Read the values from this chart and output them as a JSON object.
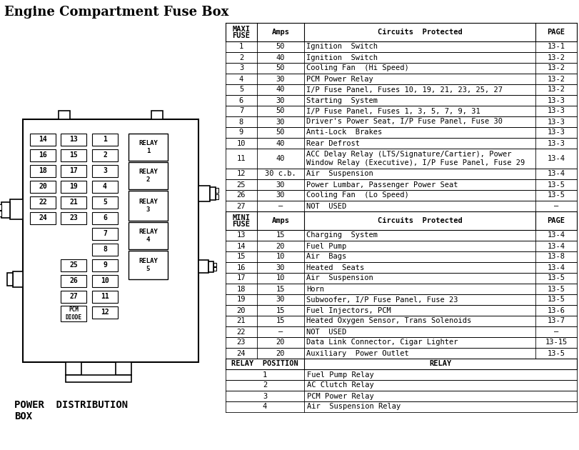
{
  "title": "Engine Compartment Fuse Box",
  "subtitle": "POWER  DISTRIBUTION\nBOX",
  "bg_color": "#ffffff",
  "maxi_fuse_rows": [
    [
      "1",
      "50",
      "Ignition  Switch",
      "13-1"
    ],
    [
      "2",
      "40",
      "Ignition  Switch",
      "13-2"
    ],
    [
      "3",
      "50",
      "Cooling Fan  (Hi Speed)",
      "13-2"
    ],
    [
      "4",
      "30",
      "PCM Power Relay",
      "13-2"
    ],
    [
      "5",
      "40",
      "I/P Fuse Panel, Fuses 10, 19, 21, 23, 25, 27",
      "13-2"
    ],
    [
      "6",
      "30",
      "Starting  System",
      "13-3"
    ],
    [
      "7",
      "50",
      "I/P Fuse Panel, Fuses 1, 3, 5, 7, 9, 31",
      "13-3"
    ],
    [
      "8",
      "30",
      "Driver's Power Seat, I/P Fuse Panel, Fuse 30",
      "13-3"
    ],
    [
      "9",
      "50",
      "Anti-Lock  Brakes",
      "13-3"
    ],
    [
      "10",
      "40",
      "Rear Defrost",
      "13-3"
    ],
    [
      "11",
      "40",
      "ACC Delay Relay (LTS/Signature/Cartier), Power\nWindow Relay (Executive), I/P Fuse Panel, Fuse 29",
      "13-4"
    ],
    [
      "12",
      "30 c.b.",
      "Air  Suspension",
      "13-4"
    ],
    [
      "25",
      "30",
      "Power Lumbar, Passenger Power Seat",
      "13-5"
    ],
    [
      "26",
      "30",
      "Cooling Fan  (Lo Speed)",
      "13-5"
    ],
    [
      "27",
      "—",
      "NOT  USED",
      "—"
    ]
  ],
  "mini_fuse_rows": [
    [
      "13",
      "15",
      "Charging  System",
      "13-4"
    ],
    [
      "14",
      "20",
      "Fuel Pump",
      "13-4"
    ],
    [
      "15",
      "10",
      "Air  Bags",
      "13-8"
    ],
    [
      "16",
      "30",
      "Heated  Seats",
      "13-4"
    ],
    [
      "17",
      "10",
      "Air  Suspension",
      "13-5"
    ],
    [
      "18",
      "15",
      "Horn",
      "13-5"
    ],
    [
      "19",
      "30",
      "Subwoofer, I/P Fuse Panel, Fuse 23",
      "13-5"
    ],
    [
      "20",
      "15",
      "Fuel Injectors, PCM",
      "13-6"
    ],
    [
      "21",
      "15",
      "Heated Oxygen Sensor, Trans Solenoids",
      "13-7"
    ],
    [
      "22",
      "—",
      "NOT  USED",
      "—"
    ],
    [
      "23",
      "20",
      "Data Link Connector, Cigar Lighter",
      "13-15"
    ],
    [
      "24",
      "20",
      "Auxiliary  Power Outlet",
      "13-5"
    ]
  ],
  "relay_rows": [
    [
      "1",
      "Fuel Pump Relay"
    ],
    [
      "2",
      "AC Clutch Relay"
    ],
    [
      "3",
      "PCM Power Relay"
    ],
    [
      "4",
      "Air  Suspension Relay"
    ]
  ],
  "col_headers": [
    "MAXI\nFUSE",
    "Amps",
    "Circuits  Protected",
    "PAGE"
  ],
  "mini_col_headers": [
    "MINI\nFUSE",
    "Amps",
    "Circuits  Protected",
    "PAGE"
  ],
  "relay_col_headers": [
    "RELAY  POSITION",
    "RELAY"
  ]
}
